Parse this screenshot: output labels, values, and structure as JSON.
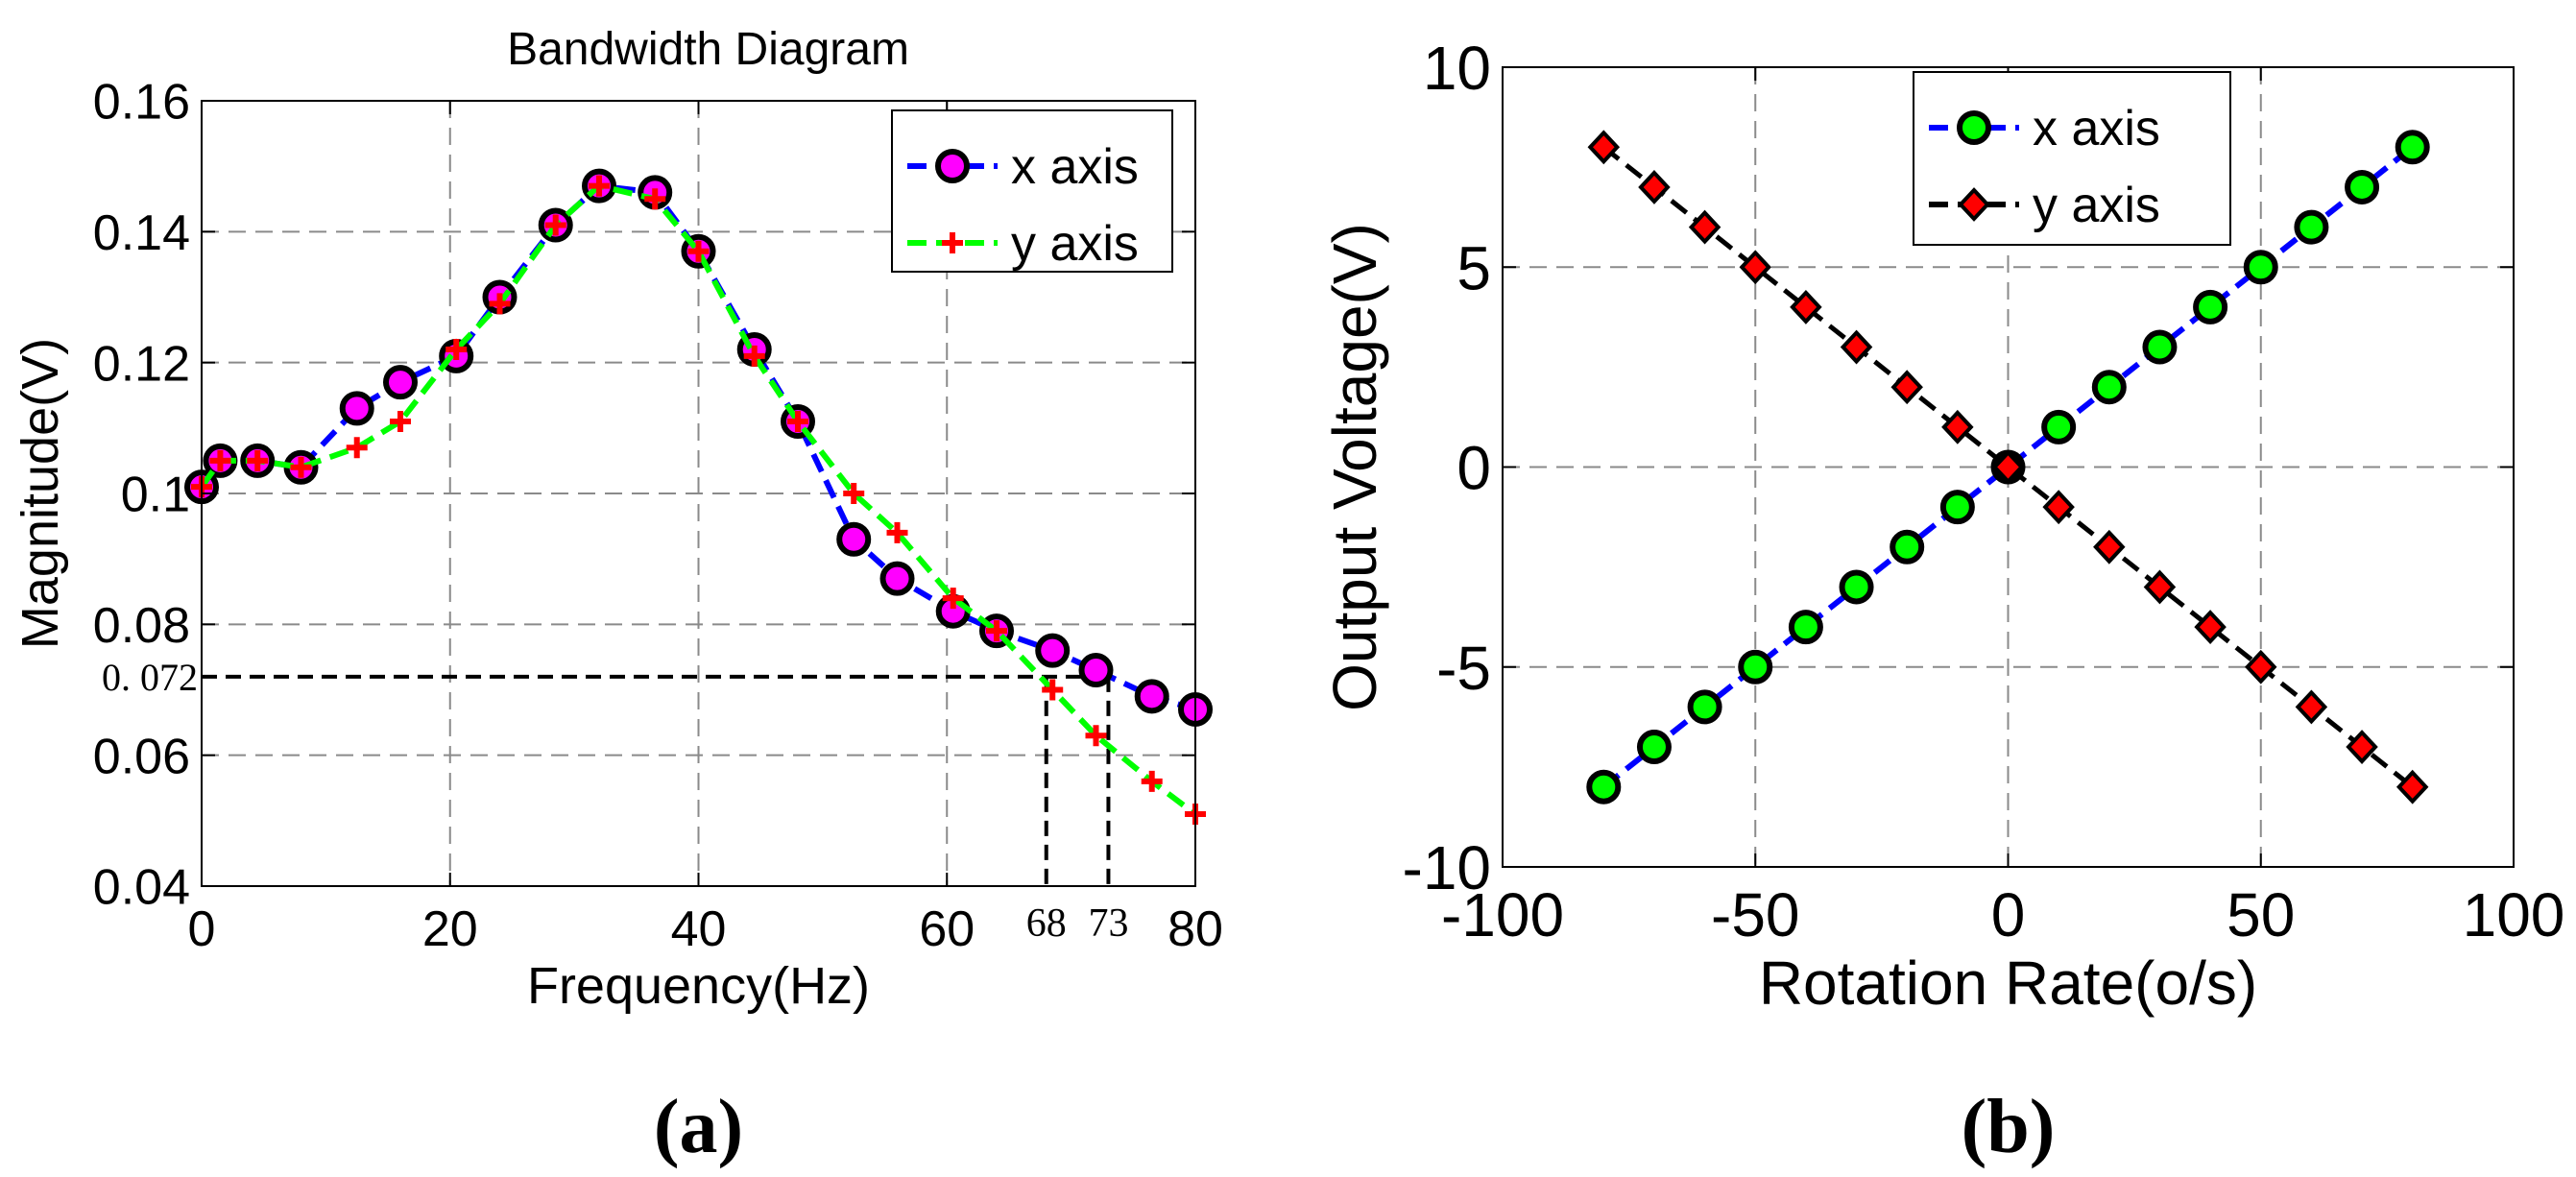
{
  "chart_data": [
    {
      "id": "a",
      "type": "line",
      "title": "Bandwidth Diagram",
      "xlabel": "Frequency(Hz)",
      "ylabel": "Magnitude(V)",
      "xlim": [
        0,
        80
      ],
      "ylim": [
        0.04,
        0.16
      ],
      "xticks": [
        0,
        20,
        40,
        60,
        80
      ],
      "yticks": [
        0.04,
        0.06,
        0.08,
        0.1,
        0.12,
        0.14,
        0.16
      ],
      "xtick_labels": [
        "0",
        "20",
        "40",
        "60",
        "80"
      ],
      "ytick_labels": [
        "0.04",
        "0.06",
        "0.08",
        "0.1",
        "0.12",
        "0.14",
        "0.16"
      ],
      "grid": true,
      "legend_position": "top-right",
      "caption": "(a)",
      "series": [
        {
          "name": "x axis",
          "line_color": "#0000ff",
          "marker": "circle",
          "marker_fill": "#ff00ff",
          "marker_edge": "#000000",
          "x": [
            0,
            1.5,
            4.5,
            8,
            12.5,
            16,
            20.5,
            24,
            28.5,
            32,
            36.5,
            40,
            44.5,
            48,
            52.5,
            56,
            60.5,
            64,
            68.5,
            72,
            76.5,
            80
          ],
          "y": [
            0.101,
            0.105,
            0.105,
            0.104,
            0.113,
            0.117,
            0.121,
            0.13,
            0.141,
            0.147,
            0.146,
            0.137,
            0.122,
            0.111,
            0.093,
            0.087,
            0.082,
            0.079,
            0.076,
            0.073,
            0.069,
            0.067
          ]
        },
        {
          "name": "y axis",
          "line_color": "#00ff00",
          "marker": "plus",
          "marker_color": "#ff0000",
          "x": [
            0,
            1.5,
            4.5,
            8,
            12.5,
            16,
            20.5,
            24,
            28.5,
            32,
            36.5,
            40,
            44.5,
            48,
            52.5,
            56,
            60.5,
            64,
            68.5,
            72,
            76.5,
            80
          ],
          "y": [
            0.101,
            0.105,
            0.105,
            0.104,
            0.107,
            0.111,
            0.122,
            0.129,
            0.141,
            0.147,
            0.145,
            0.137,
            0.121,
            0.111,
            0.1,
            0.094,
            0.084,
            0.079,
            0.07,
            0.063,
            0.056,
            0.051
          ]
        }
      ],
      "annotations": {
        "hline_value": 0.072,
        "hline_label": "0. 072",
        "vlines": [
          {
            "x": 68,
            "label": "68"
          },
          {
            "x": 73,
            "label": "73"
          }
        ]
      }
    },
    {
      "id": "b",
      "type": "line",
      "title": "",
      "xlabel": "Rotation Rate(o/s)",
      "ylabel": "Output Voltage(V)",
      "xlim": [
        -100,
        100
      ],
      "ylim": [
        -10,
        10
      ],
      "xticks": [
        -100,
        -50,
        0,
        50,
        100
      ],
      "yticks": [
        -10,
        -5,
        0,
        5,
        10
      ],
      "xtick_labels": [
        "-100",
        "-50",
        "0",
        "50",
        "100"
      ],
      "ytick_labels": [
        "-10",
        "-5",
        "0",
        "5",
        "10"
      ],
      "grid": true,
      "legend_position": "top-center",
      "caption": "(b)",
      "series": [
        {
          "name": "x axis",
          "line_color": "#0000ff",
          "marker": "circle",
          "marker_fill": "#00ff00",
          "marker_edge": "#000000",
          "x": [
            -80,
            -70,
            -60,
            -50,
            -40,
            -30,
            -20,
            -10,
            0,
            10,
            20,
            30,
            40,
            50,
            60,
            70,
            80
          ],
          "y": [
            -8,
            -7,
            -6,
            -5,
            -4,
            -3,
            -2,
            -1,
            0,
            1,
            2,
            3,
            4,
            5,
            6,
            7,
            8
          ]
        },
        {
          "name": "y axis",
          "line_color": "#000000",
          "marker": "diamond",
          "marker_fill": "#ff0000",
          "marker_edge": "#000000",
          "x": [
            -80,
            -70,
            -60,
            -50,
            -40,
            -30,
            -20,
            -10,
            0,
            10,
            20,
            30,
            40,
            50,
            60,
            70,
            80
          ],
          "y": [
            8,
            7,
            6,
            5,
            4,
            3,
            2,
            1,
            0,
            -1,
            -2,
            -3,
            -4,
            -5,
            -6,
            -7,
            -8
          ]
        }
      ]
    }
  ]
}
